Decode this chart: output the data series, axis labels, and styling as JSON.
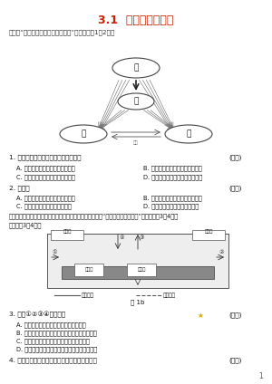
{
  "title": "3.1  自然界的水循环",
  "subtitle": "下图为“水循环联系四大圈层示意图”，读图完成1～2题。",
  "diagram1_labels": [
    "甲",
    "乙",
    "丙",
    "丁"
  ],
  "diagram2_caption": "图 1b",
  "q1_text": "1. 甲、乙、丙、丁所代表的圈层状况是",
  "q1_bracket": "(　　)",
  "q1_A": "A. 大气圈、生物圈、岩石圈、水圈",
  "q1_B": "B. 水圈、大气圈、生物圈、岩石圈",
  "q1_C": "C. 岩石圈、水圈、大气圈、生物圈",
  "q1_D": "D. 生物圈、岩石圈、水圈、大气圈",
  "q2_text": "2. 水循环",
  "q2_bracket": "(　　)",
  "q2_A": "A. 使全球水资源空间分布趋于平衡",
  "q2_B": "B. 使地水资源取之不尽，用之不竭",
  "q2_C": "C. 使地球表面高低纬子距状不平",
  "q2_D": "D. 促进全球物质迁移和能量交换",
  "q2_note": "有专家把水循环可分为自然循环和社会循环两大类，右图为“某城市水循环示意图”，读图完成3～4题。",
  "q3_text": "3. 图中①②③④分别表示",
  "q3_bracket": "(　　)",
  "q3_A": "A. 地表径流、地下径流、蒸发、人工降水",
  "q3_B": "B. 地下径流、地表径流、管道输水、跨地域调水",
  "q3_C": "C. 地表径流、跨流域调水、蒸发、人工降水",
  "q3_D": "D. 跨流域调水、地表径流、管道输水、人工降水",
  "q4_text": "4. 关于人类对城市水循环影响的叙述，正确的是",
  "q4_bracket": "(　　)",
  "bg_color": "#ffffff",
  "title_color": "#cc2200",
  "text_color": "#333333",
  "diagram_color": "#888888"
}
